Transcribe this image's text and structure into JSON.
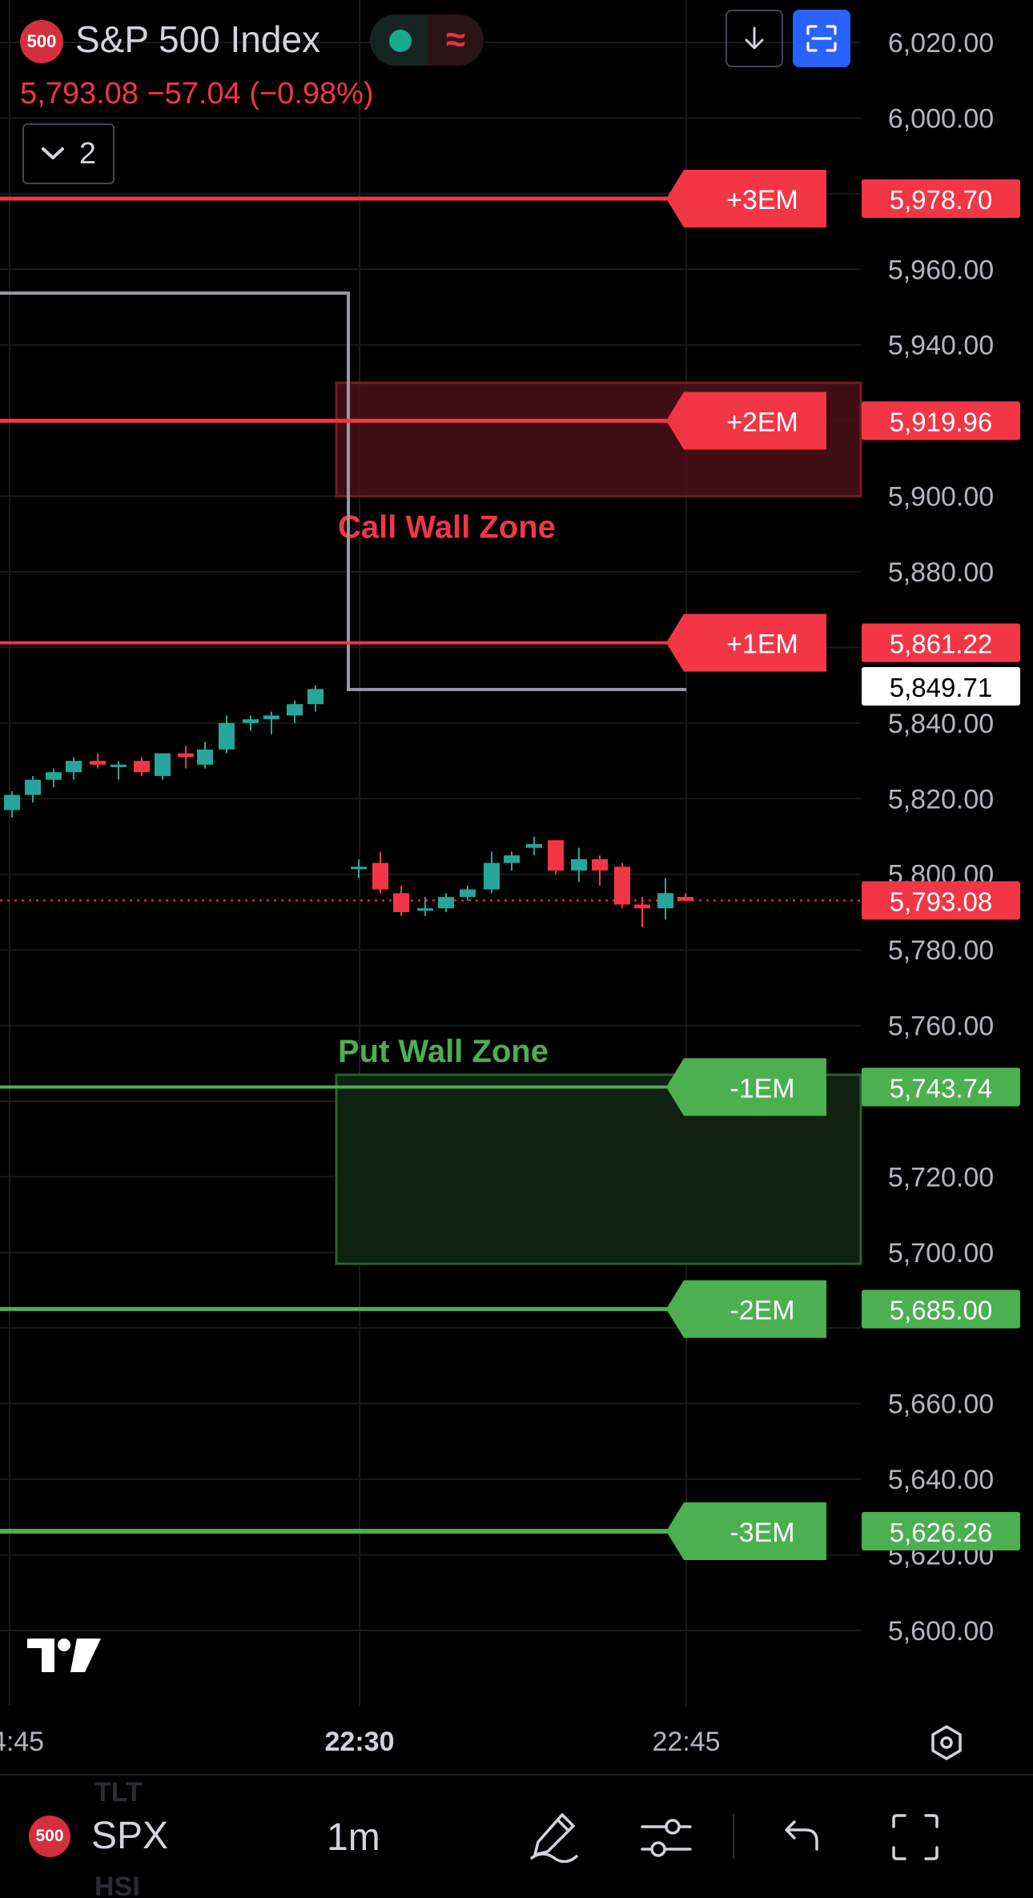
{
  "header": {
    "symbol_badge": "500",
    "title": "S&P 500 Index",
    "status_icon": "live-dot",
    "indicator_glyph": "≈",
    "price_line": "5,793.08  −57.04 (−0.98%)",
    "indicators_count": "2",
    "download_icon": "arrow-down-icon",
    "fullscreen_icon": "maximize-icon"
  },
  "price_axis": {
    "ticks": [
      "6,020.00",
      "6,000.00",
      "5,960.00",
      "5,940.00",
      "5,900.00",
      "5,880.00",
      "5,840.00",
      "5,820.00",
      "5,800.00",
      "5,780.00",
      "5,760.00",
      "5,720.00",
      "5,700.00",
      "5,660.00",
      "5,640.00",
      "5,620.00",
      "5,600.00"
    ],
    "tick_values": [
      6020,
      6000,
      5960,
      5940,
      5900,
      5880,
      5840,
      5820,
      5800,
      5780,
      5760,
      5720,
      5700,
      5660,
      5640,
      5620,
      5600
    ]
  },
  "time_axis": {
    "labels": [
      {
        "text": "4:45",
        "bold": false
      },
      {
        "text": "22:30",
        "bold": true
      },
      {
        "text": "22:45",
        "bold": false
      }
    ]
  },
  "levels": [
    {
      "label": "+3EM",
      "price": 5978.7,
      "price_text": "5,978.70",
      "color": "#f23645"
    },
    {
      "label": "+2EM",
      "price": 5919.96,
      "price_text": "5,919.96",
      "color": "#f23645"
    },
    {
      "label": "+1EM",
      "price": 5861.22,
      "price_text": "5,861.22",
      "color": "#f23645"
    },
    {
      "label": "-1EM",
      "price": 5743.74,
      "price_text": "5,743.74",
      "color": "#4caf50"
    },
    {
      "label": "-2EM",
      "price": 5685.0,
      "price_text": "5,685.00",
      "color": "#4caf50"
    },
    {
      "label": "-3EM",
      "price": 5626.26,
      "price_text": "5,626.26",
      "color": "#4caf50"
    }
  ],
  "zones": {
    "call": {
      "label": "Call Wall Zone",
      "top": 5930,
      "bottom": 5900,
      "color": "#f23645"
    },
    "put": {
      "label": "Put Wall Zone",
      "top": 5747,
      "bottom": 5697,
      "color": "#4caf50"
    }
  },
  "current_price": {
    "value": 5793.08,
    "text": "5,793.08",
    "color": "#f23645"
  },
  "crosshair_label": {
    "value": 5849.71,
    "text": "5,849.71"
  },
  "chart_data": {
    "type": "candlestick",
    "ylim": [
      5590,
      6030
    ],
    "candles": [
      {
        "o": 5817,
        "h": 5822,
        "l": 5815,
        "c": 5821
      },
      {
        "o": 5821,
        "h": 5826,
        "l": 5819,
        "c": 5825
      },
      {
        "o": 5825,
        "h": 5828,
        "l": 5823,
        "c": 5827
      },
      {
        "o": 5827,
        "h": 5831,
        "l": 5825,
        "c": 5830
      },
      {
        "o": 5830,
        "h": 5832,
        "l": 5828,
        "c": 5829
      },
      {
        "o": 5829,
        "h": 5830,
        "l": 5825,
        "c": 5829
      },
      {
        "o": 5830,
        "h": 5831,
        "l": 5826,
        "c": 5827
      },
      {
        "o": 5826,
        "h": 5832,
        "l": 5825,
        "c": 5832
      },
      {
        "o": 5832,
        "h": 5834,
        "l": 5828,
        "c": 5831
      },
      {
        "o": 5829,
        "h": 5835,
        "l": 5828,
        "c": 5833
      },
      {
        "o": 5833,
        "h": 5842,
        "l": 5832,
        "c": 5840
      },
      {
        "o": 5840,
        "h": 5842,
        "l": 5838,
        "c": 5841
      },
      {
        "o": 5841,
        "h": 5843,
        "l": 5837,
        "c": 5842
      },
      {
        "o": 5842,
        "h": 5846,
        "l": 5840,
        "c": 5845
      },
      {
        "o": 5845,
        "h": 5850,
        "l": 5843,
        "c": 5849
      },
      {
        "o": 5802,
        "h": 5804,
        "l": 5799,
        "c": 5802
      },
      {
        "o": 5803,
        "h": 5806,
        "l": 5795,
        "c": 5796
      },
      {
        "o": 5795,
        "h": 5797,
        "l": 5789,
        "c": 5790
      },
      {
        "o": 5791,
        "h": 5794,
        "l": 5789,
        "c": 5791
      },
      {
        "o": 5791,
        "h": 5795,
        "l": 5790,
        "c": 5794
      },
      {
        "o": 5794,
        "h": 5797,
        "l": 5793,
        "c": 5796
      },
      {
        "o": 5796,
        "h": 5806,
        "l": 5795,
        "c": 5803
      },
      {
        "o": 5803,
        "h": 5806,
        "l": 5801,
        "c": 5805
      },
      {
        "o": 5807,
        "h": 5810,
        "l": 5805,
        "c": 5808
      },
      {
        "o": 5809,
        "h": 5809,
        "l": 5800,
        "c": 5801
      },
      {
        "o": 5801,
        "h": 5807,
        "l": 5798,
        "c": 5804
      },
      {
        "o": 5804,
        "h": 5805,
        "l": 5797,
        "c": 5801
      },
      {
        "o": 5802,
        "h": 5803,
        "l": 5791,
        "c": 5792
      },
      {
        "o": 5792,
        "h": 5794,
        "l": 5786,
        "c": 5791
      },
      {
        "o": 5791,
        "h": 5799,
        "l": 5788,
        "c": 5795
      },
      {
        "o": 5794,
        "h": 5795,
        "l": 5793,
        "c": 5793
      }
    ]
  },
  "watermarks": [
    "TLT",
    "HSI"
  ],
  "footer": {
    "symbol_badge": "500",
    "symbol": "SPX",
    "interval": "1m",
    "icons": [
      "draw-pen-icon",
      "settings-sliders-icon",
      "undo-icon",
      "fullscreen-icon"
    ]
  },
  "colors": {
    "up": "#26a69a",
    "down": "#f23645",
    "grid": "#1a1a1a",
    "axis_text": "#b2b5be"
  }
}
